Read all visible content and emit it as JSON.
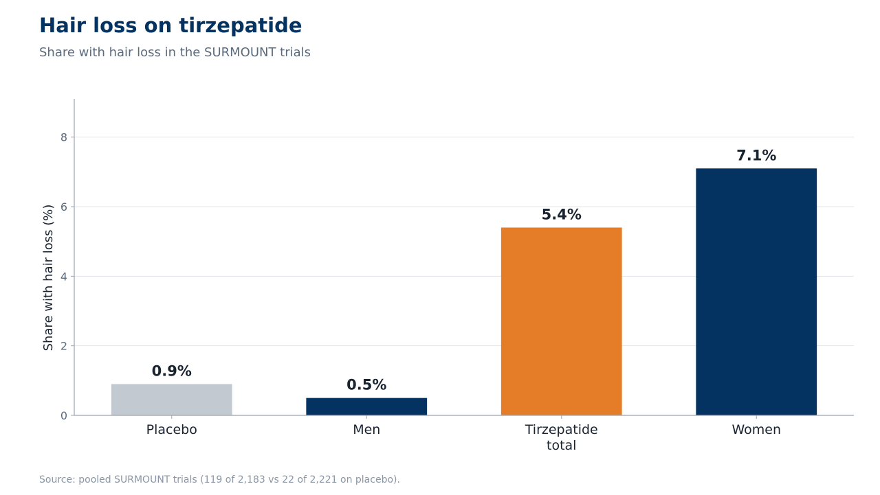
{
  "title": "Hair loss on tirzepatide",
  "subtitle": "Share with hair loss in the SURMOUNT trials",
  "source": "Source: pooled SURMOUNT trials (119 of 2,183 vs 22 of 2,221 on placebo).",
  "chart_data": {
    "type": "bar",
    "categories": [
      [
        "Placebo"
      ],
      [
        "Men"
      ],
      [
        "Tirzepatide",
        "total"
      ],
      [
        "Women"
      ]
    ],
    "values": [
      0.9,
      0.5,
      5.4,
      7.1
    ],
    "value_labels": [
      "0.9%",
      "0.5%",
      "5.4%",
      "7.1%"
    ],
    "colors": [
      "#c3c9d1",
      "#053361",
      "#e57c28",
      "#053361"
    ],
    "ylabel": "Share with hair loss (%)",
    "ylim": [
      0,
      9.1
    ],
    "yticks": [
      0,
      2,
      4,
      6,
      8
    ],
    "grid": true
  }
}
